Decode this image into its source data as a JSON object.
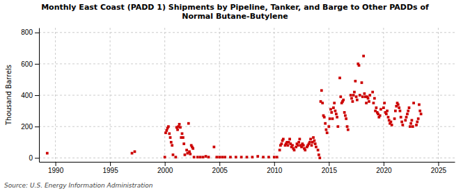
{
  "chart_data": {
    "type": "scatter",
    "title": "Monthly East Coast (PADD 1) Shipments by Pipeline, Tanker, and Barge to Other PADDs of\nNormal Butane-Butylene",
    "ylabel": "Thousand Barrels",
    "annotations": [
      "Source: U.S. Energy Information Administration"
    ],
    "color": "#cc0000",
    "marker": "square",
    "grid": true,
    "xlim": [
      1988.5,
      2026.5
    ],
    "ylim": [
      -25,
      830
    ],
    "xticks": [
      1990,
      1995,
      2000,
      2005,
      2010,
      2015,
      2020,
      2025
    ],
    "yticks": [
      0,
      200,
      400,
      600,
      800
    ],
    "x": [
      1989.25,
      1997.0,
      1997.25,
      2000.0,
      2000.08,
      2000.17,
      2000.25,
      2000.33,
      2000.42,
      2000.5,
      2000.58,
      2000.67,
      2000.75,
      2001.0,
      2001.08,
      2001.17,
      2001.25,
      2001.33,
      2001.42,
      2001.5,
      2001.58,
      2001.67,
      2001.75,
      2001.83,
      2002.0,
      2002.08,
      2002.17,
      2002.25,
      2002.33,
      2002.42,
      2002.5,
      2002.58,
      2002.67,
      2003.0,
      2003.25,
      2003.5,
      2003.75,
      2004.0,
      2004.5,
      2004.75,
      2005.0,
      2005.25,
      2005.5,
      2006.0,
      2006.5,
      2007.0,
      2007.5,
      2008.0,
      2008.5,
      2009.0,
      2009.5,
      2010.0,
      2010.25,
      2010.5,
      2010.58,
      2010.67,
      2010.75,
      2010.83,
      2011.0,
      2011.08,
      2011.17,
      2011.25,
      2011.33,
      2011.42,
      2011.5,
      2011.58,
      2011.67,
      2011.75,
      2011.83,
      2012.0,
      2012.08,
      2012.17,
      2012.25,
      2012.33,
      2012.42,
      2012.5,
      2012.58,
      2012.67,
      2012.75,
      2012.83,
      2013.0,
      2013.08,
      2013.17,
      2013.25,
      2013.33,
      2013.42,
      2013.5,
      2013.58,
      2013.67,
      2013.75,
      2013.83,
      2014.0,
      2014.08,
      2014.17,
      2014.25,
      2014.33,
      2014.42,
      2014.5,
      2014.58,
      2014.67,
      2014.75,
      2014.83,
      2015.0,
      2015.08,
      2015.17,
      2015.25,
      2015.33,
      2015.42,
      2015.5,
      2015.58,
      2015.67,
      2015.75,
      2015.83,
      2016.0,
      2016.08,
      2016.17,
      2016.25,
      2016.33,
      2016.42,
      2016.5,
      2016.58,
      2016.67,
      2016.75,
      2017.0,
      2017.08,
      2017.17,
      2017.25,
      2017.33,
      2017.42,
      2017.5,
      2017.58,
      2017.67,
      2017.75,
      2017.83,
      2018.0,
      2018.08,
      2018.17,
      2018.25,
      2018.33,
      2018.42,
      2018.5,
      2018.58,
      2018.67,
      2018.75,
      2019.0,
      2019.08,
      2019.17,
      2019.25,
      2019.33,
      2019.42,
      2019.5,
      2019.58,
      2019.67,
      2019.75,
      2020.0,
      2020.08,
      2020.17,
      2020.25,
      2020.33,
      2020.42,
      2020.5,
      2020.58,
      2020.67,
      2020.75,
      2021.0,
      2021.08,
      2021.17,
      2021.25,
      2021.33,
      2021.42,
      2021.5,
      2021.58,
      2021.67,
      2021.75,
      2022.0,
      2022.08,
      2022.17,
      2022.25,
      2022.33,
      2022.42,
      2022.5,
      2022.58,
      2022.67,
      2022.75,
      2023.0,
      2023.08,
      2023.17,
      2023.25,
      2023.33,
      2023.42
    ],
    "values": [
      30,
      30,
      40,
      5,
      160,
      175,
      190,
      200,
      155,
      130,
      100,
      80,
      20,
      5,
      195,
      180,
      200,
      215,
      195,
      130,
      155,
      130,
      90,
      20,
      50,
      30,
      220,
      40,
      25,
      80,
      70,
      60,
      5,
      5,
      5,
      5,
      10,
      5,
      70,
      5,
      5,
      5,
      5,
      5,
      5,
      5,
      5,
      5,
      10,
      5,
      5,
      5,
      5,
      50,
      80,
      90,
      110,
      120,
      80,
      90,
      100,
      80,
      100,
      120,
      90,
      70,
      80,
      60,
      50,
      70,
      90,
      80,
      100,
      120,
      80,
      70,
      90,
      80,
      60,
      50,
      70,
      80,
      90,
      100,
      120,
      80,
      100,
      130,
      110,
      90,
      70,
      50,
      20,
      0,
      360,
      430,
      350,
      270,
      260,
      220,
      180,
      160,
      200,
      250,
      310,
      290,
      250,
      320,
      350,
      300,
      280,
      260,
      200,
      510,
      390,
      350,
      360,
      370,
      290,
      270,
      250,
      200,
      180,
      400,
      380,
      360,
      400,
      420,
      490,
      390,
      370,
      600,
      590,
      400,
      480,
      390,
      650,
      410,
      390,
      350,
      390,
      380,
      360,
      400,
      420,
      350,
      380,
      300,
      320,
      290,
      280,
      260,
      270,
      310,
      320,
      350,
      290,
      280,
      300,
      260,
      240,
      220,
      230,
      210,
      250,
      300,
      330,
      350,
      340,
      320,
      300,
      260,
      230,
      210,
      240,
      260,
      280,
      300,
      320,
      200,
      220,
      240,
      200,
      350,
      210,
      230,
      250,
      340,
      300,
      280
    ]
  }
}
